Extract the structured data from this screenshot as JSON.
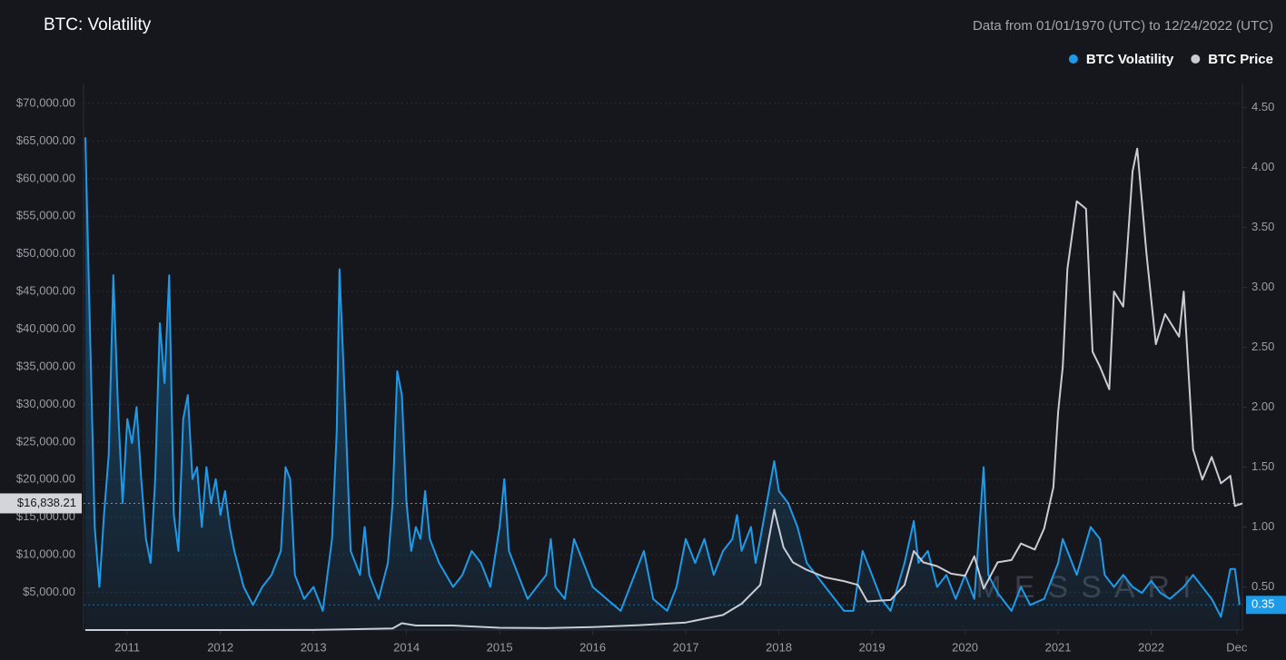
{
  "chart_data": {
    "type": "line",
    "title": "BTC: Volatility",
    "subtitle": "Data from 01/01/1970 (UTC) to 12/24/2022 (UTC)",
    "watermark": "MESSARI",
    "xlim": [
      2010.53,
      2022.98
    ],
    "xticks": [
      2011,
      2012,
      2013,
      2014,
      2015,
      2016,
      2017,
      2018,
      2019,
      2020,
      2021,
      2022,
      {
        "value": 2022.92,
        "label": "Dec"
      }
    ],
    "ylim": [
      0,
      72650
    ],
    "yticks": [
      {
        "value": 5000,
        "label": "$5,000.00"
      },
      {
        "value": 10000,
        "label": "$10,000.00"
      },
      {
        "value": 15000,
        "label": "$15,000.00"
      },
      {
        "value": 20000,
        "label": "$20,000.00"
      },
      {
        "value": 25000,
        "label": "$25,000.00"
      },
      {
        "value": 30000,
        "label": "$30,000.00"
      },
      {
        "value": 35000,
        "label": "$35,000.00"
      },
      {
        "value": 40000,
        "label": "$40,000.00"
      },
      {
        "value": 45000,
        "label": "$45,000.00"
      },
      {
        "value": 50000,
        "label": "$50,000.00"
      },
      {
        "value": 55000,
        "label": "$55,000.00"
      },
      {
        "value": 60000,
        "label": "$60,000.00"
      },
      {
        "value": 65000,
        "label": "$65,000.00"
      },
      {
        "value": 70000,
        "label": "$70,000.00"
      }
    ],
    "y2lim": [
      0.14,
      4.7
    ],
    "y2ticks": [
      {
        "value": 0.5,
        "label": "0.50"
      },
      {
        "value": 1,
        "label": "1.00"
      },
      {
        "value": 1.5,
        "label": "1.50"
      },
      {
        "value": 2,
        "label": "2.00"
      },
      {
        "value": 2.5,
        "label": "2.50"
      },
      {
        "value": 3,
        "label": "3.00"
      },
      {
        "value": 3.5,
        "label": "3.50"
      },
      {
        "value": 4,
        "label": "4.00"
      },
      {
        "value": 4.5,
        "label": "4.50"
      }
    ],
    "grid": true,
    "legend": "top-right",
    "series": [
      {
        "name": "BTC Volatility",
        "color": "#1e9be8",
        "axis": "y2",
        "area": true,
        "current_value": {
          "value": 0.35,
          "label": "0.35"
        },
        "x": [
          2010.55,
          2010.6,
          2010.65,
          2010.7,
          2010.75,
          2010.8,
          2010.85,
          2010.9,
          2010.95,
          2011.0,
          2011.05,
          2011.1,
          2011.15,
          2011.2,
          2011.25,
          2011.3,
          2011.35,
          2011.4,
          2011.45,
          2011.5,
          2011.55,
          2011.6,
          2011.65,
          2011.7,
          2011.75,
          2011.8,
          2011.85,
          2011.9,
          2011.95,
          2012.0,
          2012.05,
          2012.1,
          2012.15,
          2012.25,
          2012.35,
          2012.45,
          2012.55,
          2012.65,
          2012.7,
          2012.75,
          2012.8,
          2012.9,
          2013.0,
          2013.1,
          2013.2,
          2013.25,
          2013.28,
          2013.33,
          2013.4,
          2013.5,
          2013.55,
          2013.6,
          2013.7,
          2013.8,
          2013.85,
          2013.9,
          2013.95,
          2014.0,
          2014.05,
          2014.1,
          2014.15,
          2014.2,
          2014.25,
          2014.35,
          2014.5,
          2014.6,
          2014.7,
          2014.8,
          2014.9,
          2015.0,
          2015.05,
          2015.1,
          2015.2,
          2015.3,
          2015.4,
          2015.5,
          2015.55,
          2015.6,
          2015.7,
          2015.8,
          2015.9,
          2016.0,
          2016.15,
          2016.3,
          2016.45,
          2016.55,
          2016.65,
          2016.8,
          2016.9,
          2017.0,
          2017.1,
          2017.2,
          2017.3,
          2017.4,
          2017.5,
          2017.55,
          2017.6,
          2017.7,
          2017.75,
          2017.8,
          2017.95,
          2018.0,
          2018.1,
          2018.2,
          2018.3,
          2018.4,
          2018.5,
          2018.6,
          2018.7,
          2018.8,
          2018.9,
          2019.0,
          2019.1,
          2019.2,
          2019.35,
          2019.45,
          2019.5,
          2019.6,
          2019.7,
          2019.8,
          2019.9,
          2020.0,
          2020.1,
          2020.2,
          2020.25,
          2020.35,
          2020.5,
          2020.6,
          2020.7,
          2020.85,
          2021.0,
          2021.05,
          2021.1,
          2021.2,
          2021.35,
          2021.45,
          2021.5,
          2021.6,
          2021.7,
          2021.8,
          2021.9,
          2022.0,
          2022.1,
          2022.2,
          2022.35,
          2022.45,
          2022.55,
          2022.65,
          2022.75,
          2022.85,
          2022.9,
          2022.95
        ],
        "values": [
          4.25,
          2.6,
          1.0,
          0.5,
          1.1,
          1.6,
          3.1,
          2.0,
          1.2,
          1.9,
          1.7,
          2.0,
          1.4,
          0.9,
          0.7,
          1.4,
          2.7,
          2.2,
          3.1,
          1.1,
          0.8,
          1.9,
          2.1,
          1.4,
          1.5,
          1.0,
          1.5,
          1.2,
          1.4,
          1.1,
          1.3,
          1.0,
          0.8,
          0.5,
          0.35,
          0.5,
          0.6,
          0.8,
          1.5,
          1.4,
          0.6,
          0.4,
          0.5,
          0.3,
          0.9,
          1.8,
          3.15,
          2.2,
          0.8,
          0.6,
          1.0,
          0.6,
          0.4,
          0.7,
          1.2,
          2.3,
          2.1,
          1.2,
          0.8,
          1.0,
          0.9,
          1.3,
          0.9,
          0.7,
          0.5,
          0.6,
          0.8,
          0.7,
          0.5,
          1.0,
          1.4,
          0.8,
          0.6,
          0.4,
          0.5,
          0.6,
          0.9,
          0.5,
          0.4,
          0.9,
          0.7,
          0.5,
          0.4,
          0.3,
          0.6,
          0.8,
          0.4,
          0.3,
          0.5,
          0.9,
          0.7,
          0.9,
          0.6,
          0.8,
          0.9,
          1.1,
          0.8,
          1.0,
          0.7,
          0.9,
          1.55,
          1.3,
          1.2,
          1.0,
          0.7,
          0.6,
          0.5,
          0.4,
          0.3,
          0.3,
          0.8,
          0.6,
          0.4,
          0.3,
          0.7,
          1.05,
          0.7,
          0.8,
          0.5,
          0.6,
          0.4,
          0.6,
          0.4,
          1.5,
          0.6,
          0.45,
          0.3,
          0.5,
          0.35,
          0.4,
          0.7,
          0.9,
          0.8,
          0.6,
          1.0,
          0.9,
          0.6,
          0.5,
          0.6,
          0.5,
          0.45,
          0.55,
          0.45,
          0.4,
          0.5,
          0.6,
          0.5,
          0.4,
          0.25,
          0.65,
          0.65,
          0.35
        ]
      },
      {
        "name": "BTC Price",
        "color": "#c9ccd4",
        "axis": "y",
        "current_value": {
          "value": 16838.21,
          "label": "$16,838.21"
        },
        "x": [
          2010.55,
          2011.0,
          2012.0,
          2013.0,
          2013.85,
          2013.95,
          2014.1,
          2014.5,
          2015.0,
          2015.5,
          2016.0,
          2016.5,
          2017.0,
          2017.4,
          2017.6,
          2017.8,
          2017.95,
          2018.05,
          2018.15,
          2018.3,
          2018.5,
          2018.7,
          2018.85,
          2018.95,
          2019.2,
          2019.35,
          2019.45,
          2019.55,
          2019.7,
          2019.85,
          2020.0,
          2020.1,
          2020.2,
          2020.35,
          2020.5,
          2020.6,
          2020.75,
          2020.85,
          2020.95,
          2021.0,
          2021.05,
          2021.1,
          2021.2,
          2021.3,
          2021.37,
          2021.45,
          2021.55,
          2021.6,
          2021.7,
          2021.8,
          2021.85,
          2021.95,
          2022.05,
          2022.15,
          2022.3,
          2022.35,
          2022.45,
          2022.55,
          2022.65,
          2022.75,
          2022.85,
          2022.9,
          2022.98
        ],
        "values": [
          0,
          1,
          5,
          13,
          200,
          900,
          600,
          600,
          300,
          250,
          400,
          650,
          1000,
          2000,
          3500,
          6000,
          16000,
          11000,
          9000,
          8000,
          7000,
          6500,
          6000,
          3800,
          4000,
          6000,
          10500,
          9000,
          8500,
          7500,
          7200,
          9800,
          5500,
          9000,
          9300,
          11500,
          10700,
          13500,
          19000,
          29000,
          35000,
          48000,
          57000,
          56000,
          37000,
          35000,
          32000,
          45000,
          43000,
          61000,
          64000,
          50000,
          38000,
          42000,
          39000,
          45000,
          24000,
          20000,
          23000,
          19500,
          20500,
          16500,
          16838.21
        ]
      }
    ]
  }
}
